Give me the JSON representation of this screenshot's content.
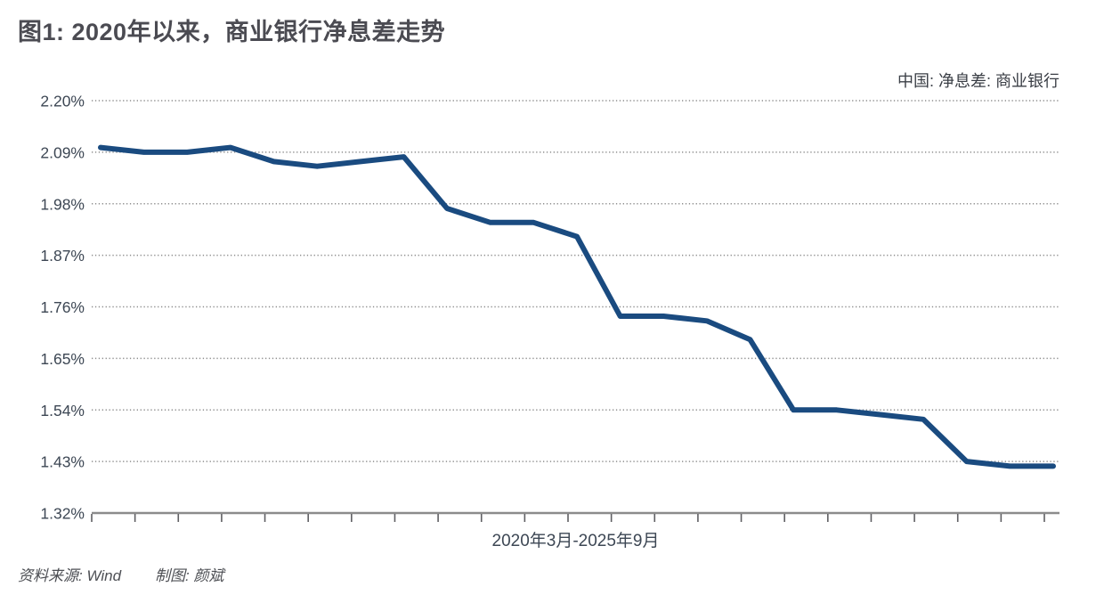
{
  "header": {
    "title": "图1: 2020年以来，商业银行净息差走势"
  },
  "legend": {
    "label": "中国: 净息差: 商业银行"
  },
  "chart_data": {
    "type": "line",
    "title": "图1: 2020年以来，商业银行净息差走势",
    "series_name": "中国: 净息差: 商业银行",
    "x": [
      "2020-03",
      "2020-06",
      "2020-09",
      "2020-12",
      "2021-03",
      "2021-06",
      "2021-09",
      "2021-12",
      "2022-03",
      "2022-06",
      "2022-09",
      "2022-12",
      "2023-03",
      "2023-06",
      "2023-09",
      "2023-12",
      "2024-03",
      "2024-06",
      "2024-09",
      "2024-12",
      "2025-03",
      "2025-06",
      "2025-09"
    ],
    "values": [
      2.1,
      2.09,
      2.09,
      2.1,
      2.07,
      2.06,
      2.07,
      2.08,
      1.97,
      1.94,
      1.94,
      1.91,
      1.74,
      1.74,
      1.73,
      1.69,
      1.54,
      1.54,
      1.53,
      1.52,
      1.43,
      1.42,
      1.42
    ],
    "unit": "%",
    "xlabel": "2020年3月-2025年9月",
    "ylabel": "",
    "ylim": [
      1.32,
      2.2
    ],
    "yticks": [
      2.2,
      2.09,
      1.98,
      1.87,
      1.76,
      1.65,
      1.54,
      1.43,
      1.32
    ],
    "ytick_labels": [
      "2.20%",
      "2.09%",
      "1.98%",
      "1.87%",
      "1.76%",
      "1.65%",
      "1.54%",
      "1.43%",
      "1.32%"
    ],
    "grid": "horizontal-dotted",
    "legend_position": "top-right",
    "line_color": "#1a4b80",
    "grid_color": "#8e8e8e",
    "axis_color": "#8c8c8c",
    "tick_label_color": "#3d4754"
  },
  "footer": {
    "source": "资料来源: Wind",
    "credit": "制图: 颜斌"
  }
}
